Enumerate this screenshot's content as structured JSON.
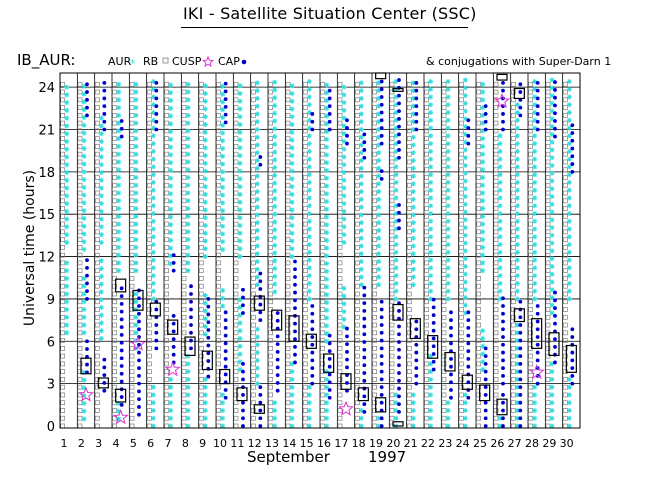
{
  "title": "IKI - Satellite Situation Center (SSC)",
  "header": {
    "station": "IB_AUR:",
    "legend_aur": "AUR",
    "legend_rb": "RB",
    "legend_cusp": "CUSP",
    "legend_cap": "CAP",
    "right_note": "& conjugations with Super-Darn 1"
  },
  "colors": {
    "aur": "#33dddd",
    "rb": "#808080",
    "cusp": "#dd33cc",
    "cap": "#0000cc",
    "grid": "#000000"
  },
  "chart_data": {
    "type": "scatter",
    "ylabel": "Universal time (hours)",
    "xlabel_month": "September",
    "xlabel_year": "1997",
    "ylim": [
      0,
      25
    ],
    "yticks": [
      0,
      3,
      6,
      9,
      12,
      15,
      18,
      21,
      24
    ],
    "xticks": [
      1,
      2,
      3,
      4,
      5,
      6,
      7,
      8,
      9,
      10,
      11,
      12,
      13,
      14,
      15,
      16,
      17,
      18,
      19,
      20,
      21,
      22,
      23,
      24,
      25,
      26,
      27,
      28,
      29,
      30
    ],
    "grid": true,
    "days": [
      {
        "day": 1,
        "rb": [
          [
            0,
            24.5
          ]
        ],
        "aur": [
          [
            6.6,
            12.0
          ],
          [
            13.0,
            24.5
          ]
        ],
        "cap": [],
        "conj": [],
        "cusp": []
      },
      {
        "day": 2,
        "rb": [
          [
            0,
            24.5
          ]
        ],
        "aur": [
          [
            0.5,
            4.0
          ],
          [
            6.6,
            10.5
          ],
          [
            12.5,
            24.5
          ]
        ],
        "cap": [
          [
            3.8,
            6.0
          ],
          [
            9.0,
            12.0
          ],
          [
            22.0,
            24.5
          ]
        ],
        "conj": [
          [
            3.7,
            4.8
          ]
        ],
        "cusp": [
          2.2
        ]
      },
      {
        "day": 3,
        "rb": [
          [
            0,
            24.5
          ]
        ],
        "aur": [
          [
            6.2,
            12.0
          ],
          [
            13.0,
            22.0
          ]
        ],
        "cap": [
          [
            2.5,
            4.7
          ],
          [
            21.0,
            24.5
          ]
        ],
        "conj": [
          [
            2.7,
            3.4
          ]
        ],
        "cusp": []
      },
      {
        "day": 4,
        "rb": [
          [
            0,
            24.5
          ]
        ],
        "aur": [
          [
            0.5,
            1.8
          ],
          [
            11.0,
            24.5
          ]
        ],
        "cap": [
          [
            1.5,
            9.8
          ],
          [
            20.5,
            22.0
          ]
        ],
        "conj": [
          [
            1.7,
            2.6
          ],
          [
            9.5,
            10.4
          ]
        ],
        "cusp": [
          0.6
        ]
      },
      {
        "day": 5,
        "rb": [
          [
            0,
            24.5
          ]
        ],
        "aur": [
          [
            5.5,
            9.5
          ],
          [
            11.0,
            24.5
          ]
        ],
        "cap": [
          [
            0.8,
            9.8
          ]
        ],
        "conj": [
          [
            8.2,
            9.6
          ]
        ],
        "cusp": [
          5.8
        ]
      },
      {
        "day": 6,
        "rb": [
          [
            0,
            24.5
          ]
        ],
        "aur": [
          [
            0,
            3.0
          ],
          [
            9.0,
            24.5
          ]
        ],
        "cap": [
          [
            5.5,
            9.0
          ],
          [
            21.0,
            24.5
          ]
        ],
        "conj": [
          [
            7.8,
            8.7
          ]
        ],
        "cusp": []
      },
      {
        "day": 7,
        "rb": [
          [
            0,
            24.5
          ]
        ],
        "aur": [
          [
            0,
            3.5
          ],
          [
            11.5,
            24.5
          ]
        ],
        "cap": [
          [
            4.5,
            8.0
          ],
          [
            11.0,
            12.5
          ]
        ],
        "conj": [
          [
            6.5,
            7.5
          ]
        ],
        "cusp": [
          4.0
        ]
      },
      {
        "day": 8,
        "rb": [
          [
            0,
            24.5
          ]
        ],
        "aur": [
          [
            0,
            5.0
          ],
          [
            11.0,
            24.5
          ]
        ],
        "cap": [
          [
            5.5,
            10.0
          ]
        ],
        "conj": [
          [
            5.0,
            6.3
          ]
        ],
        "cusp": []
      },
      {
        "day": 9,
        "rb": [
          [
            0,
            24.5
          ]
        ],
        "aur": [
          [
            0,
            3.5
          ],
          [
            6.5,
            9.5
          ],
          [
            12.0,
            24.5
          ]
        ],
        "cap": [
          [
            3.5,
            9.0
          ]
        ],
        "conj": [
          [
            4.0,
            5.3
          ]
        ],
        "cusp": []
      },
      {
        "day": 10,
        "rb": [
          [
            0,
            24.5
          ]
        ],
        "aur": [
          [
            0,
            2.5
          ],
          [
            8.5,
            10.0
          ],
          [
            12.5,
            24.5
          ]
        ],
        "cap": [
          [
            2.0,
            8.5
          ],
          [
            21.5,
            24.5
          ]
        ],
        "conj": [
          [
            3.0,
            4.0
          ]
        ],
        "cusp": []
      },
      {
        "day": 11,
        "rb": [
          [
            0,
            24.5
          ]
        ],
        "aur": [
          [
            4.0,
            9.0
          ],
          [
            12.0,
            24.5
          ]
        ],
        "cap": [
          [
            0,
            4.5
          ],
          [
            8.0,
            10.0
          ]
        ],
        "conj": [
          [
            1.8,
            2.7
          ]
        ],
        "cusp": []
      },
      {
        "day": 12,
        "rb": [
          [
            0,
            24.5
          ]
        ],
        "aur": [
          [
            3.0,
            7.0
          ],
          [
            10.0,
            24.5
          ]
        ],
        "cap": [
          [
            0,
            3.0
          ],
          [
            7.5,
            11.0
          ],
          [
            18.5,
            19.5
          ]
        ],
        "conj": [
          [
            0.9,
            1.5
          ],
          [
            8.2,
            9.2
          ]
        ],
        "cusp": []
      },
      {
        "day": 13,
        "rb": [
          [
            0,
            24.5
          ]
        ],
        "aur": [
          [
            0,
            2.0
          ],
          [
            9.5,
            24.5
          ]
        ],
        "cap": [
          [
            2.5,
            8.5
          ]
        ],
        "conj": [
          [
            6.8,
            8.2
          ]
        ],
        "cusp": []
      },
      {
        "day": 14,
        "rb": [
          [
            0,
            24.5
          ]
        ],
        "aur": [
          [
            0,
            4.5
          ],
          [
            12.0,
            24.5
          ]
        ],
        "cap": [
          [
            4.5,
            12.0
          ]
        ],
        "conj": [
          [
            6.0,
            7.8
          ]
        ],
        "cusp": []
      },
      {
        "day": 15,
        "rb": [
          [
            0,
            24.5
          ]
        ],
        "aur": [
          [
            0,
            3.0
          ],
          [
            9.0,
            24.5
          ]
        ],
        "cap": [
          [
            3.0,
            9.0
          ],
          [
            21.0,
            22.5
          ]
        ],
        "conj": [
          [
            5.5,
            6.5
          ]
        ],
        "cusp": []
      },
      {
        "day": 16,
        "rb": [
          [
            0,
            24.5
          ]
        ],
        "aur": [
          [
            0,
            4.0
          ],
          [
            6.0,
            24.5
          ]
        ],
        "cap": [
          [
            2.0,
            6.5
          ],
          [
            21.0,
            24.0
          ]
        ],
        "conj": [
          [
            3.8,
            5.1
          ]
        ],
        "cusp": []
      },
      {
        "day": 17,
        "rb": [
          [
            0,
            24.5
          ]
        ],
        "aur": [
          [
            7.0,
            10.0
          ],
          [
            13.0,
            24.5
          ]
        ],
        "cap": [
          [
            2.5,
            7.0
          ],
          [
            20.0,
            22.0
          ]
        ],
        "conj": [
          [
            2.6,
            3.7
          ]
        ],
        "cusp": [
          1.2
        ]
      },
      {
        "day": 18,
        "rb": [
          [
            0,
            24.5
          ]
        ],
        "aur": [
          [
            0,
            1.5
          ],
          [
            10.0,
            24.5
          ]
        ],
        "cap": [
          [
            1.0,
            10.0
          ],
          [
            19.0,
            21.0
          ]
        ],
        "conj": [
          [
            1.8,
            2.7
          ]
        ],
        "cusp": []
      },
      {
        "day": 19,
        "rb": [
          [
            0,
            24.5
          ]
        ],
        "aur": [
          [
            0,
            1.0
          ],
          [
            10.0,
            24.5
          ]
        ],
        "cap": [
          [
            0,
            9.0
          ],
          [
            17.5,
            18.5
          ],
          [
            20.0,
            24.5
          ]
        ],
        "conj": [
          [
            1.0,
            2.0
          ],
          [
            24.6,
            25.0
          ]
        ],
        "cusp": []
      },
      {
        "day": 20,
        "rb": [
          [
            0,
            24.5
          ]
        ],
        "aur": [
          [
            0,
            2.5
          ],
          [
            9.0,
            24.5
          ]
        ],
        "cap": [
          [
            1.0,
            9.0
          ],
          [
            14.0,
            16.0
          ],
          [
            19.0,
            24.5
          ]
        ],
        "conj": [
          [
            0,
            0.3
          ],
          [
            7.5,
            8.6
          ],
          [
            23.7,
            23.9
          ]
        ],
        "cusp": []
      },
      {
        "day": 21,
        "rb": [
          [
            0,
            24.5
          ]
        ],
        "aur": [
          [
            0,
            2.5
          ],
          [
            10.0,
            24.5
          ]
        ],
        "cap": [
          [
            3.0,
            7.5
          ],
          [
            21.0,
            24.5
          ]
        ],
        "conj": [
          [
            6.2,
            7.6
          ]
        ],
        "cusp": []
      },
      {
        "day": 22,
        "rb": [
          [
            0,
            24.5
          ]
        ],
        "aur": [
          [
            0,
            5.0
          ],
          [
            9.0,
            24.5
          ]
        ],
        "cap": [
          [
            4.0,
            9.0
          ]
        ],
        "conj": [
          [
            4.8,
            6.4
          ]
        ],
        "cusp": []
      },
      {
        "day": 23,
        "rb": [
          [
            0,
            24.5
          ]
        ],
        "aur": [
          [
            0,
            2.0
          ],
          [
            9.0,
            24.5
          ]
        ],
        "cap": [
          [
            2.0,
            8.5
          ]
        ],
        "conj": [
          [
            3.9,
            5.2
          ]
        ],
        "cusp": []
      },
      {
        "day": 24,
        "rb": [
          [
            0,
            24.5
          ]
        ],
        "aur": [
          [
            0,
            2.5
          ],
          [
            8.0,
            24.5
          ]
        ],
        "cap": [
          [
            2.0,
            8.5
          ],
          [
            20.0,
            22.0
          ]
        ],
        "conj": [
          [
            2.6,
            3.6
          ]
        ],
        "cusp": []
      },
      {
        "day": 25,
        "rb": [
          [
            0,
            24.5
          ]
        ],
        "aur": [
          [
            4.0,
            7.0
          ],
          [
            11.0,
            24.5
          ]
        ],
        "cap": [
          [
            0,
            5.5
          ],
          [
            21.0,
            23.0
          ]
        ],
        "conj": [
          [
            1.8,
            2.9
          ]
        ],
        "cusp": []
      },
      {
        "day": 26,
        "rb": [
          [
            0,
            24.5
          ]
        ],
        "aur": [
          [
            0,
            1.0
          ],
          [
            9.0,
            21.0
          ]
        ],
        "cap": [
          [
            0,
            2.5
          ],
          [
            3.0,
            9.5
          ],
          [
            21.0,
            24.5
          ]
        ],
        "conj": [
          [
            0.8,
            1.9
          ],
          [
            24.5,
            24.9
          ]
        ],
        "cusp": [
          23.0
        ]
      },
      {
        "day": 27,
        "rb": [
          [
            0,
            24.5
          ]
        ],
        "aur": [
          [
            0,
            7.5
          ],
          [
            9.0,
            23.0
          ]
        ],
        "cap": [
          [
            0,
            9.0
          ],
          [
            22.0,
            24.5
          ]
        ],
        "conj": [
          [
            7.4,
            8.3
          ],
          [
            23.2,
            23.9
          ]
        ],
        "cusp": []
      },
      {
        "day": 28,
        "rb": [
          [
            0,
            24.5
          ]
        ],
        "aur": [
          [
            0,
            3.0
          ],
          [
            9.0,
            24.5
          ]
        ],
        "cap": [
          [
            3.0,
            9.0
          ],
          [
            21.0,
            24.5
          ]
        ],
        "conj": [
          [
            5.5,
            7.6
          ]
        ],
        "cusp": [
          3.8
        ]
      },
      {
        "day": 29,
        "rb": [
          [
            0,
            24.5
          ]
        ],
        "aur": [
          [
            0,
            4.5
          ],
          [
            8.0,
            24.5
          ]
        ],
        "cap": [
          [
            4.5,
            9.5
          ],
          [
            20.5,
            24.5
          ]
        ],
        "conj": [
          [
            5.0,
            6.6
          ]
        ],
        "cusp": []
      },
      {
        "day": 30,
        "rb": [
          [
            0,
            24.5
          ]
        ],
        "aur": [
          [
            0,
            3.5
          ],
          [
            9.0,
            24.5
          ]
        ],
        "cap": [
          [
            3.0,
            7.0
          ],
          [
            18.0,
            21.5
          ]
        ],
        "conj": [
          [
            3.8,
            5.7
          ]
        ],
        "cusp": []
      }
    ]
  }
}
